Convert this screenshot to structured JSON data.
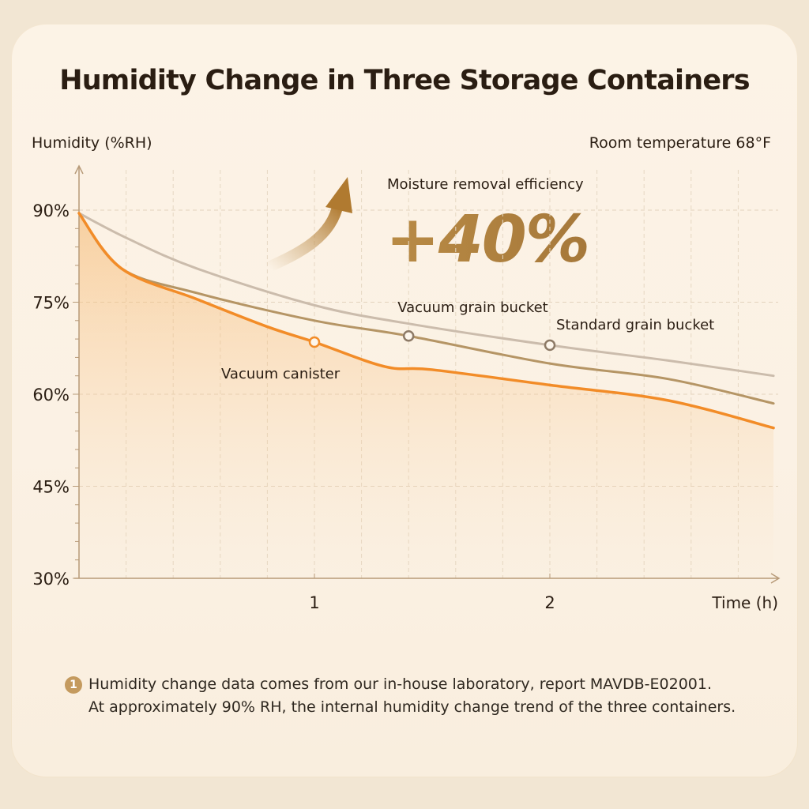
{
  "title": "Humidity Change in Three Storage Containers",
  "room_temperature": "Room temperature 68°F",
  "efficiency": {
    "label": "Moisture removal efficiency",
    "value": "+40%"
  },
  "footnote": {
    "number": "1",
    "line1": "Humidity change data comes from our in-house laboratory, report MAVDB-E02001.",
    "line2": "At approximately 90% RH, the internal humidity change trend of the three containers."
  },
  "colors": {
    "vacuum_canister": "#f28c28",
    "vacuum_grain_bucket": "#b59565",
    "standard_grain_bucket": "#cbbcac",
    "accent": "#b58a44"
  },
  "chart_data": {
    "type": "line",
    "title": "Humidity Change in Three Storage Containers",
    "xlabel": "Time (h)",
    "ylabel": "Humidity (%RH)",
    "xlim": [
      0,
      2.95
    ],
    "ylim": [
      30,
      90
    ],
    "x_ticks": [
      1,
      2
    ],
    "x_tick_labels": [
      "1",
      "2"
    ],
    "y_ticks": [
      30,
      45,
      60,
      75,
      90
    ],
    "y_tick_labels": [
      "30%",
      "45%",
      "60%",
      "75%",
      "90%"
    ],
    "grid": true,
    "series": [
      {
        "name": "Standard grain bucket",
        "color": "#cbbcac",
        "points": [
          [
            0,
            89.5
          ],
          [
            0.2,
            85.5
          ],
          [
            0.5,
            80.5
          ],
          [
            1.0,
            74.5
          ],
          [
            1.4,
            71.5
          ],
          [
            2.0,
            68.0
          ],
          [
            2.5,
            65.5
          ],
          [
            2.95,
            63.0
          ]
        ],
        "marker": [
          2.0,
          68.0
        ]
      },
      {
        "name": "Vacuum grain bucket",
        "color": "#b59565",
        "points": [
          [
            0,
            89.5
          ],
          [
            0.18,
            80.5
          ],
          [
            0.5,
            76.5
          ],
          [
            1.0,
            72.0
          ],
          [
            1.4,
            69.5
          ],
          [
            2.0,
            65.0
          ],
          [
            2.5,
            62.5
          ],
          [
            2.95,
            58.5
          ]
        ],
        "marker": [
          1.4,
          69.5
        ]
      },
      {
        "name": "Vacuum canister",
        "color": "#f28c28",
        "points": [
          [
            0,
            89.5
          ],
          [
            0.18,
            80.5
          ],
          [
            0.5,
            75.5
          ],
          [
            0.8,
            71.0
          ],
          [
            1.0,
            68.5
          ],
          [
            1.3,
            64.5
          ],
          [
            1.5,
            64.0
          ],
          [
            2.0,
            61.5
          ],
          [
            2.5,
            59.0
          ],
          [
            2.95,
            54.5
          ]
        ],
        "marker": [
          1.0,
          68.5
        ]
      }
    ],
    "annotations": [
      "Moisture removal efficiency",
      "+40%"
    ]
  }
}
